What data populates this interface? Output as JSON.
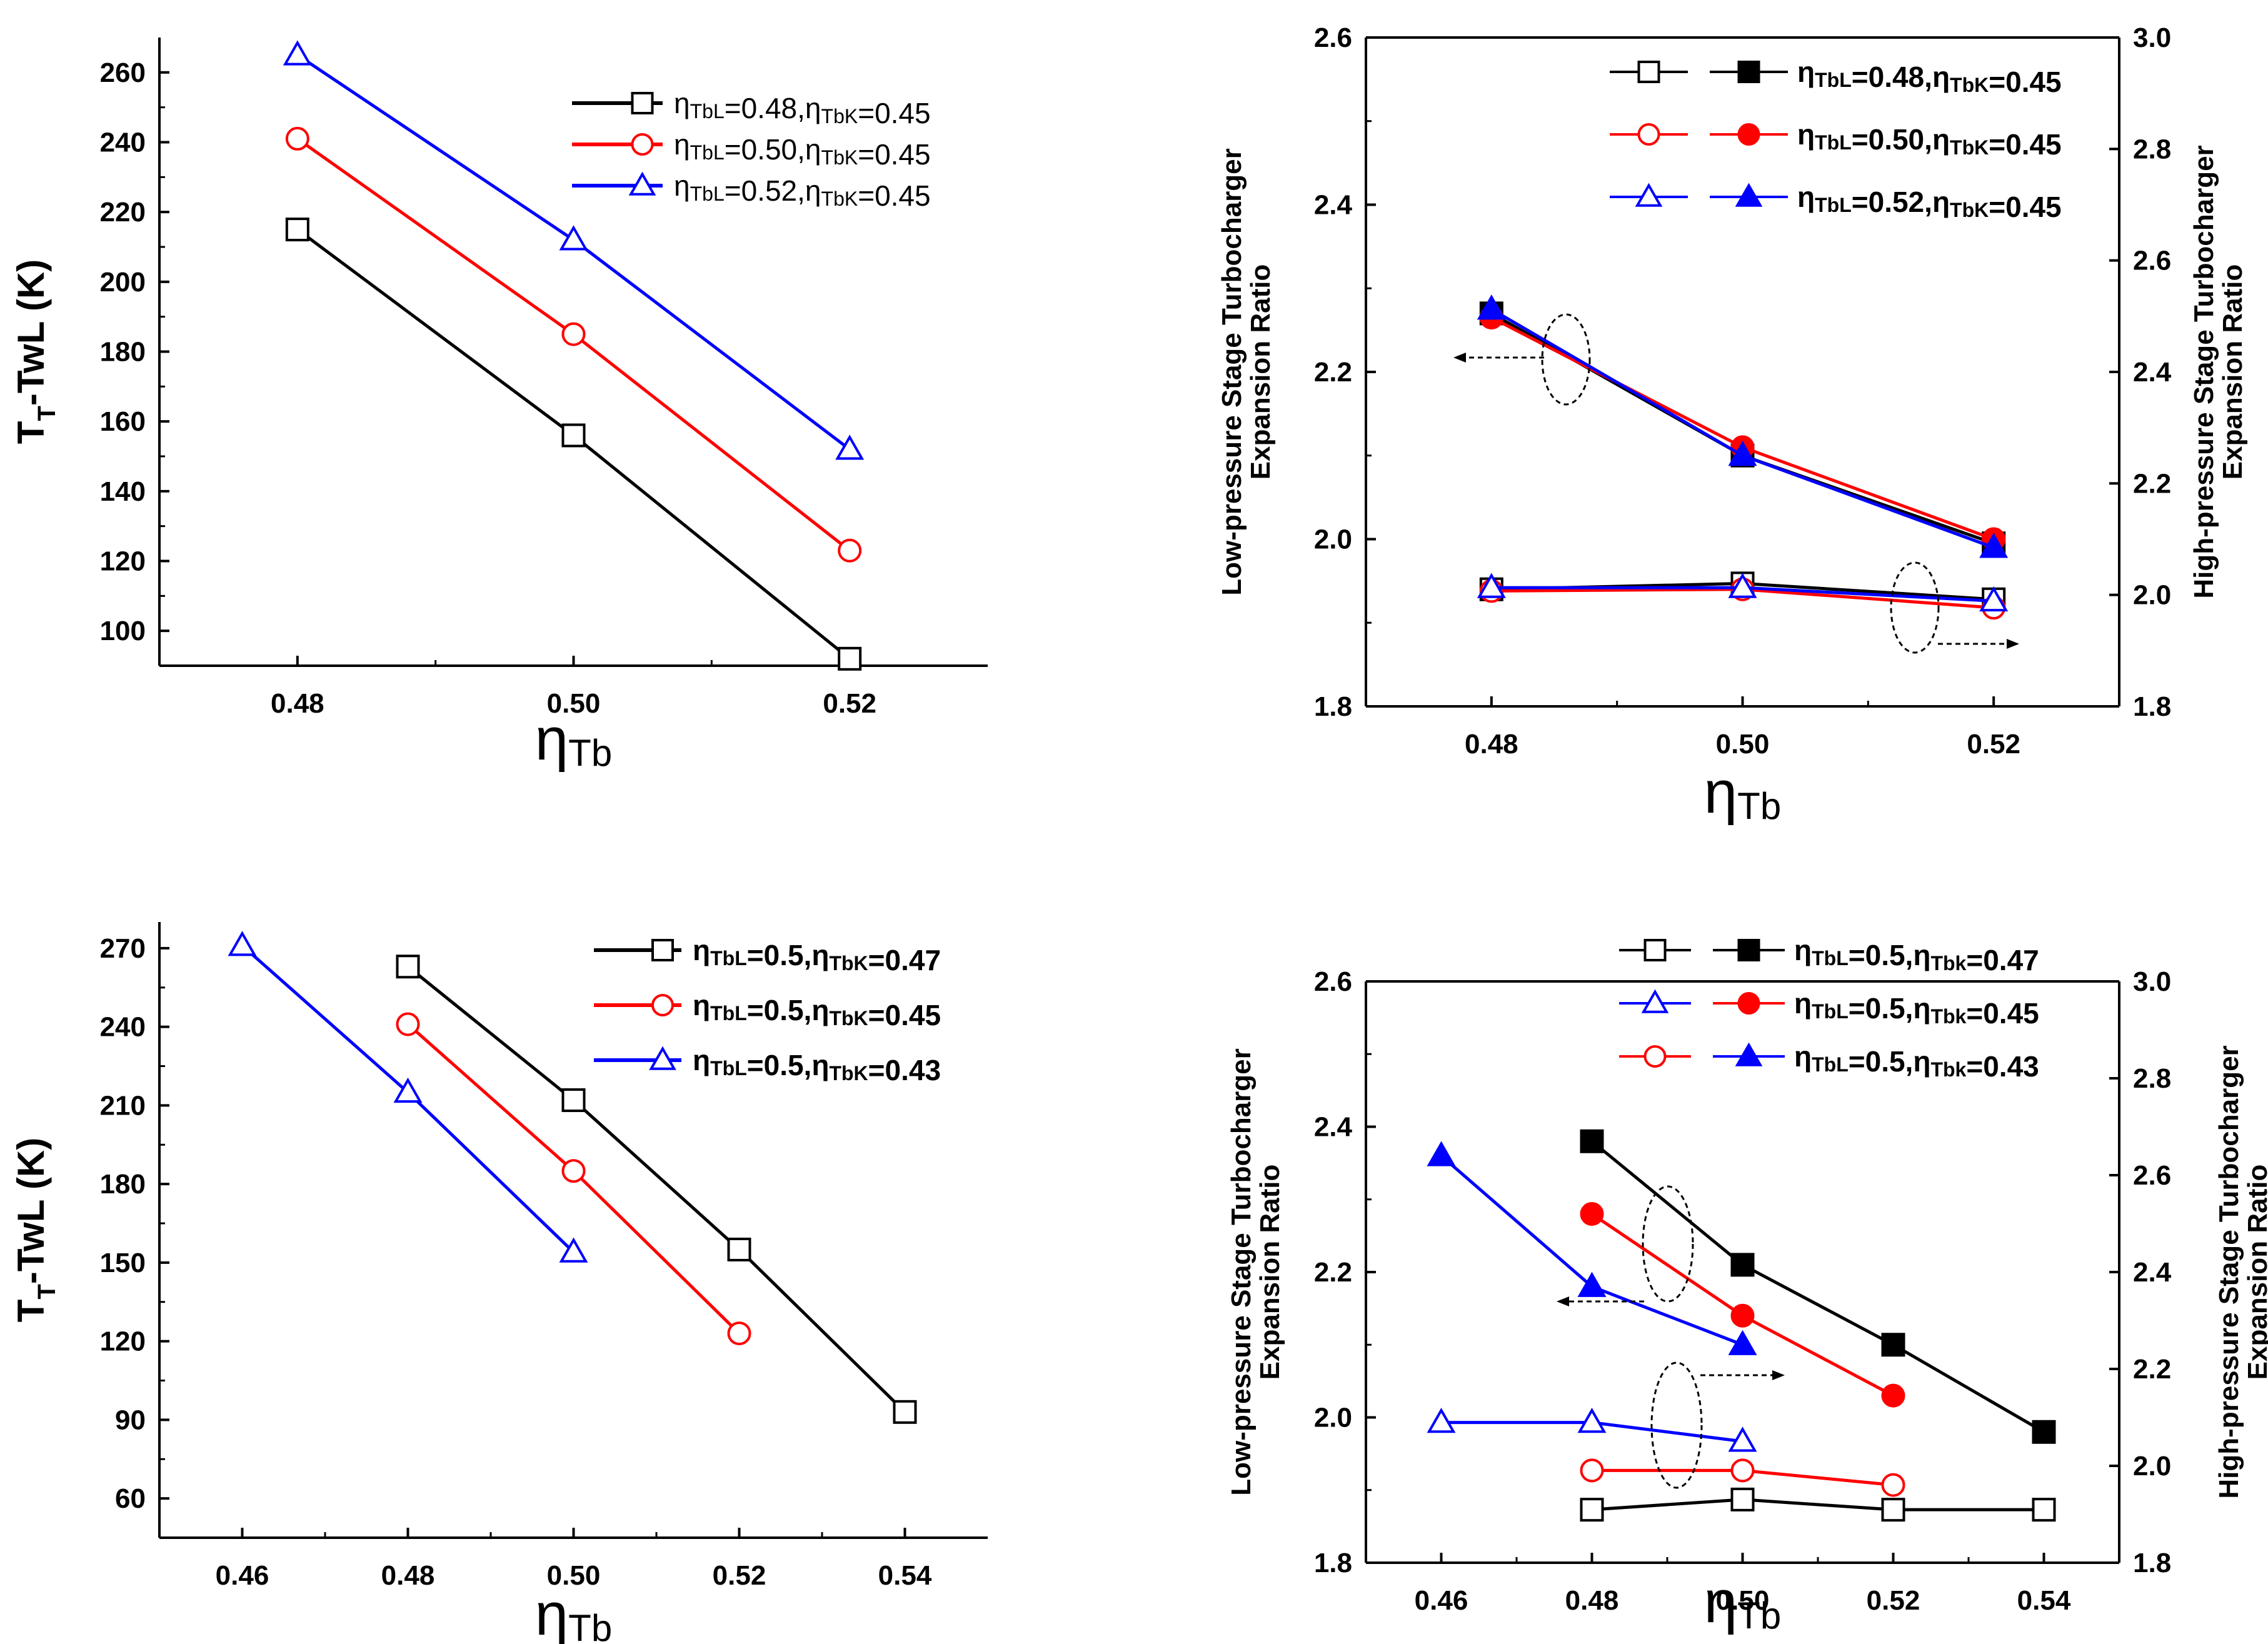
{
  "chart_data": [
    {
      "type": "line",
      "position": "top-left",
      "ylabel": "T_T-TwL (K)",
      "xlabel": "ηTb",
      "xlim": [
        0.47,
        0.53
      ],
      "ylim": [
        90,
        270
      ],
      "xticks": [
        0.48,
        0.5,
        0.52
      ],
      "xtick_labels": [
        "0.48",
        "0.50",
        "0.52"
      ],
      "yticks": [
        100,
        120,
        140,
        160,
        180,
        200,
        220,
        240,
        260
      ],
      "ytick_labels": [
        "100",
        "120",
        "140",
        "160",
        "180",
        "200",
        "220",
        "240",
        "260"
      ],
      "legend": "top-right",
      "series": [
        {
          "name": "ηTbL=0.48,ηTbK=0.45",
          "color": "#000000",
          "marker": "square-open",
          "x": [
            0.48,
            0.5,
            0.52
          ],
          "y": [
            215,
            156,
            92
          ]
        },
        {
          "name": "ηTbL=0.50,ηTbK=0.45",
          "color": "#ff0000",
          "marker": "circle-open",
          "x": [
            0.48,
            0.5,
            0.52
          ],
          "y": [
            241,
            185,
            123
          ]
        },
        {
          "name": "ηTbL=0.52,ηTbK=0.45",
          "color": "#0000ff",
          "marker": "triangle-open",
          "x": [
            0.48,
            0.5,
            0.52
          ],
          "y": [
            265,
            212,
            152
          ]
        }
      ]
    },
    {
      "type": "line",
      "position": "top-right",
      "ylabel": "Low-pressure Stage Turbocharger Expansion Ratio",
      "y2label": "High-pressure Stage Turbocharger Expansion Ratio",
      "xlabel": "ηTb",
      "xlim": [
        0.47,
        0.53
      ],
      "ylim": [
        1.8,
        2.6
      ],
      "y2lim": [
        1.8,
        3.0
      ],
      "xticks": [
        0.48,
        0.5,
        0.52
      ],
      "xtick_labels": [
        "0.48",
        "0.50",
        "0.52"
      ],
      "yticks": [
        1.8,
        2.0,
        2.2,
        2.4,
        2.6
      ],
      "ytick_labels": [
        "1.8",
        "2.0",
        "2.2",
        "2.4",
        "2.6"
      ],
      "y2ticks": [
        1.8,
        2.0,
        2.2,
        2.4,
        2.6,
        2.8,
        3.0
      ],
      "y2tick_labels": [
        "1.8",
        "2.0",
        "2.2",
        "2.4",
        "2.6",
        "2.8",
        "3.0"
      ],
      "legend": "top-right",
      "legend_labels": [
        "ηTbL=0.48,ηTbK=0.45",
        "ηTbL=0.50,ηTbK=0.45",
        "ηTbL=0.52,ηTbK=0.45"
      ],
      "series": [
        {
          "name": "ηTbL=0.48,ηTbK=0.45",
          "color": "#000000",
          "marker": "square-open",
          "axis": "left",
          "x": [
            0.48,
            0.5,
            0.52
          ],
          "y": [
            1.94,
            1.947,
            1.928
          ]
        },
        {
          "name": "ηTbL=0.50,ηTbK=0.45",
          "color": "#ff0000",
          "marker": "circle-open",
          "axis": "left",
          "x": [
            0.48,
            0.5,
            0.52
          ],
          "y": [
            1.938,
            1.94,
            1.918
          ]
        },
        {
          "name": "ηTbL=0.52,ηTbK=0.45",
          "color": "#0000ff",
          "marker": "triangle-open",
          "axis": "left",
          "x": [
            0.48,
            0.5,
            0.52
          ],
          "y": [
            1.942,
            1.942,
            1.926
          ]
        },
        {
          "name": "ηTbL=0.48,ηTbK=0.45",
          "color": "#000000",
          "marker": "square-filled",
          "axis": "left",
          "x": [
            0.48,
            0.5,
            0.52
          ],
          "y": [
            2.27,
            2.1,
            1.995
          ]
        },
        {
          "name": "ηTbL=0.50,ηTbK=0.45",
          "color": "#ff0000",
          "marker": "circle-filled",
          "axis": "left",
          "x": [
            0.48,
            0.5,
            0.52
          ],
          "y": [
            2.265,
            2.11,
            2.0
          ]
        },
        {
          "name": "ηTbL=0.52,ηTbK=0.45",
          "color": "#0000ff",
          "marker": "triangle-filled",
          "axis": "left",
          "x": [
            0.48,
            0.5,
            0.52
          ],
          "y": [
            2.275,
            2.1,
            1.99
          ]
        }
      ]
    },
    {
      "type": "line",
      "position": "bottom-left",
      "ylabel": "T_T-TwL (K)",
      "xlabel": "ηTb",
      "xlim": [
        0.45,
        0.55
      ],
      "ylim": [
        45,
        280
      ],
      "xticks": [
        0.46,
        0.48,
        0.5,
        0.52,
        0.54
      ],
      "xtick_labels": [
        "0.46",
        "0.48",
        "0.50",
        "0.52",
        "0.54"
      ],
      "yticks": [
        60,
        90,
        120,
        150,
        180,
        210,
        240,
        270
      ],
      "ytick_labels": [
        "60",
        "90",
        "120",
        "150",
        "180",
        "210",
        "240",
        "270"
      ],
      "legend": "top-right",
      "series": [
        {
          "name": "ηTbL=0.5,ηTbK=0.47",
          "color": "#000000",
          "marker": "square-open",
          "x": [
            0.48,
            0.5,
            0.52,
            0.54
          ],
          "y": [
            263,
            212,
            155,
            93
          ]
        },
        {
          "name": "ηTbL=0.5,ηTbK=0.45",
          "color": "#ff0000",
          "marker": "circle-open",
          "x": [
            0.48,
            0.5,
            0.52
          ],
          "y": [
            241,
            185,
            123
          ]
        },
        {
          "name": "ηTbL=0.5,ηTbK=0.43",
          "color": "#0000ff",
          "marker": "triangle-open",
          "x": [
            0.46,
            0.48,
            0.5
          ],
          "y": [
            271,
            215,
            154
          ]
        }
      ]
    },
    {
      "type": "line",
      "position": "bottom-right",
      "ylabel": "Low-pressure Stage Turbocharger Expansion Ratio",
      "y2label": "High-pressure Stage Turbocharger Expansion Ratio",
      "xlabel": "ηTb",
      "xlim": [
        0.45,
        0.55
      ],
      "ylim": [
        1.8,
        2.6
      ],
      "y2lim": [
        1.8,
        3.0
      ],
      "xticks": [
        0.46,
        0.48,
        0.5,
        0.52,
        0.54
      ],
      "xtick_labels": [
        "0.46",
        "0.48",
        "0.50",
        "0.52",
        "0.54"
      ],
      "yticks": [
        1.8,
        2.0,
        2.2,
        2.4,
        2.6
      ],
      "ytick_labels": [
        "1.8",
        "2.0",
        "2.2",
        "2.4",
        "2.6"
      ],
      "y2ticks": [
        1.8,
        2.0,
        2.2,
        2.4,
        2.6,
        2.8,
        3.0
      ],
      "y2tick_labels": [
        "1.8",
        "2.0",
        "2.2",
        "2.4",
        "2.6",
        "2.8",
        "3.0"
      ],
      "legend": "top-right",
      "legend_labels": [
        "ηTbL=0.5,ηTbk=0.47",
        "ηTbL=0.5,ηTbk=0.45",
        "ηTbL=0.5,ηTbk=0.43"
      ],
      "series": [
        {
          "name": "ηTbL=0.5,ηTbk=0.47",
          "color": "#000000",
          "marker": "square-open",
          "axis": "left",
          "x": [
            0.48,
            0.5,
            0.52,
            0.54
          ],
          "y": [
            1.873,
            1.887,
            1.873,
            1.873
          ]
        },
        {
          "name": "ηTbL=0.5,ηTbk=0.43",
          "color": "#0000ff",
          "marker": "triangle-open",
          "axis": "left",
          "x": [
            0.46,
            0.48,
            0.5
          ],
          "y": [
            1.993,
            1.993,
            1.967
          ]
        },
        {
          "name": "ηTbL=0.5,ηTbk=0.45",
          "color": "#ff0000",
          "marker": "circle-open",
          "axis": "left",
          "x": [
            0.48,
            0.5,
            0.52
          ],
          "y": [
            1.927,
            1.927,
            1.907
          ]
        },
        {
          "name": "ηTbL=0.5,ηTbk=0.47",
          "color": "#000000",
          "marker": "square-filled",
          "axis": "left",
          "x": [
            0.48,
            0.5,
            0.52,
            0.54
          ],
          "y": [
            2.38,
            2.21,
            2.1,
            1.98
          ]
        },
        {
          "name": "ηTbL=0.5,ηTbk=0.45",
          "color": "#ff0000",
          "marker": "circle-filled",
          "axis": "left",
          "x": [
            0.48,
            0.5,
            0.52
          ],
          "y": [
            2.28,
            2.14,
            2.03
          ]
        },
        {
          "name": "ηTbL=0.5,ηTbk=0.43",
          "color": "#0000ff",
          "marker": "triangle-filled",
          "axis": "left",
          "x": [
            0.46,
            0.48,
            0.5
          ],
          "y": [
            2.36,
            2.18,
            2.1
          ]
        }
      ]
    }
  ]
}
